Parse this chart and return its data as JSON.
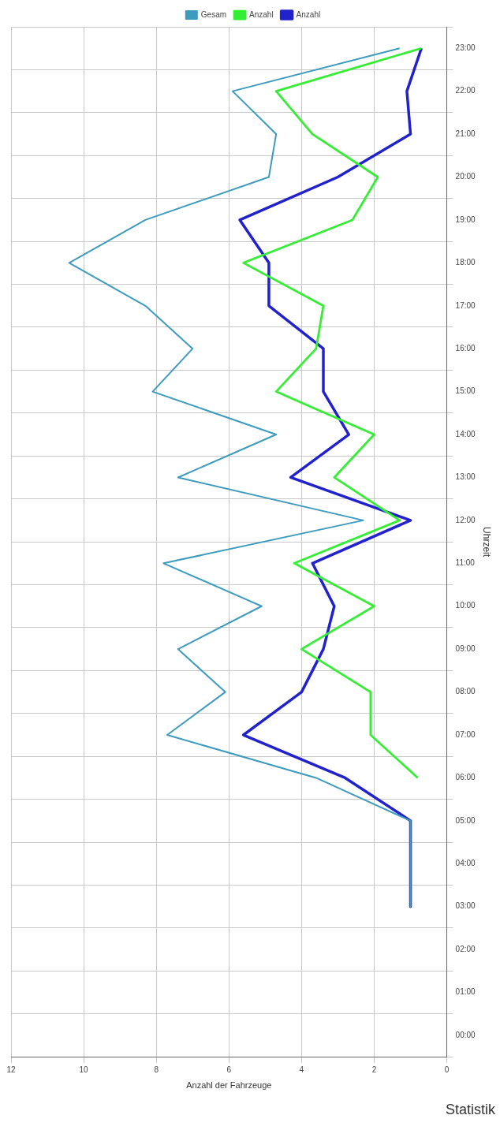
{
  "chart_data": {
    "type": "line",
    "title": "Statistik",
    "orientation": "horizontal",
    "xlabel": "Anzahl der Fahrzeuge",
    "ylabel": "Uhrzeit",
    "categories": [
      "23:00",
      "22:00",
      "21:00",
      "20:00",
      "19:00",
      "18:00",
      "17:00",
      "16:00",
      "15:00",
      "14:00",
      "13:00",
      "12:00",
      "11:00",
      "10:00",
      "09:00",
      "08:00",
      "07:00",
      "06:00",
      "05:00",
      "04:00",
      "03:00",
      "02:00",
      "01:00",
      "00:00"
    ],
    "series": [
      {
        "name": "Gesam",
        "color": "#3d9bbd",
        "values": [
          1.3,
          5.9,
          4.7,
          4.9,
          8.3,
          10.4,
          8.3,
          7.0,
          8.1,
          4.7,
          7.4,
          2.3,
          7.8,
          5.1,
          7.4,
          6.1,
          7.7,
          3.6,
          1,
          1,
          1,
          null,
          null,
          null
        ]
      },
      {
        "name": "Anzahl",
        "color": "#33ee33",
        "values": [
          0.7,
          4.7,
          3.7,
          1.9,
          2.6,
          5.6,
          3.4,
          3.6,
          4.7,
          2.0,
          3.1,
          1.3,
          4.2,
          2.0,
          4.0,
          2.1,
          2.1,
          0.8,
          null,
          null,
          null,
          null,
          null,
          null
        ]
      },
      {
        "name": "Anzahl",
        "color": "#2222cc",
        "values": [
          0.7,
          1.1,
          1.0,
          3.0,
          5.7,
          4.9,
          4.9,
          3.4,
          3.4,
          2.7,
          4.3,
          1.0,
          3.7,
          3.1,
          3.4,
          4.0,
          5.6,
          2.8,
          1,
          1,
          1,
          null,
          null,
          null
        ]
      }
    ],
    "xlim": [
      12,
      0
    ],
    "xticks": [
      0,
      2,
      4,
      6,
      8,
      10,
      12
    ],
    "grid": true,
    "legend": "top",
    "marker": "none",
    "line_style": "solid"
  }
}
